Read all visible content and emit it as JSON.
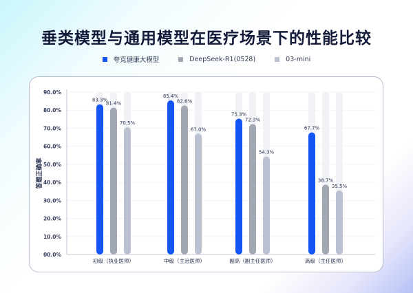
{
  "chart_data": {
    "type": "bar",
    "title": "垂类模型与通用模型在医疗场景下的性能比较",
    "ylabel": "答题正确率",
    "xlabel": "",
    "ylim": [
      0,
      90
    ],
    "yticks": [
      "00.0%",
      "10.0%",
      "20.0%",
      "30.0%",
      "40.0%",
      "50.0%",
      "60.0%",
      "70.0%",
      "80.0%",
      "90.0%"
    ],
    "grid": true,
    "legend_position": "top-center",
    "categories": [
      "初级（执业医师）",
      "中级（主治医师）",
      "副高（副主任医师）",
      "高级（主任医师）"
    ],
    "series": [
      {
        "name": "夸克健康大模型",
        "color": "#1554f5",
        "values": [
          83.3,
          85.4,
          75.3,
          67.7
        ],
        "labels": [
          "83.3%",
          "85.4%",
          "75.3%",
          "67.7%"
        ]
      },
      {
        "name": "DeepSeek-R1(0528)",
        "color": "#a2a7b4",
        "values": [
          81.4,
          82.6,
          72.3,
          38.7
        ],
        "labels": [
          "81.4%",
          "82.6%",
          "72.3%",
          "38.7%"
        ]
      },
      {
        "name": "03-mini",
        "color": "#bcc1d2",
        "values": [
          70.5,
          67.0,
          54.3,
          35.5
        ],
        "labels": [
          "70.5%",
          "67.0%",
          "54.3%",
          "35.5%"
        ]
      }
    ],
    "track_color": "#f1f2f6"
  }
}
